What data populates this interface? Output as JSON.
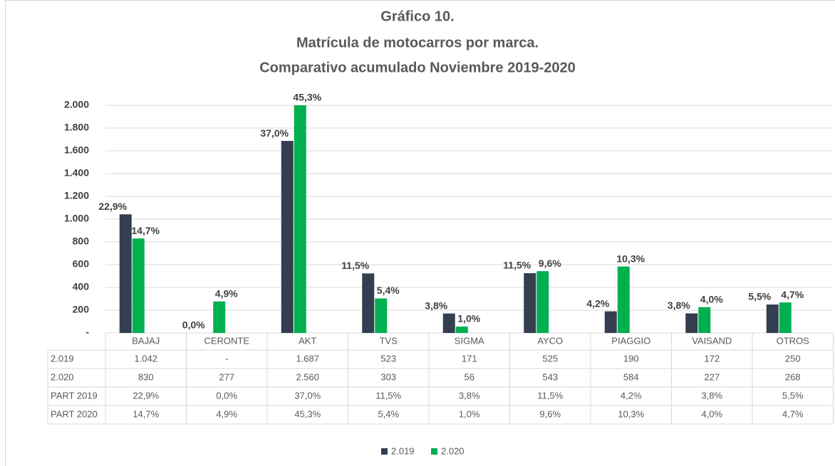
{
  "chart_data": {
    "type": "bar",
    "title": [
      "Gráfico 10.",
      "Matrícula de motocarros por marca.",
      "Comparativo acumulado Noviembre 2019-2020"
    ],
    "categories": [
      "BAJAJ",
      "CERONTE",
      "AKT",
      "TVS",
      "SIGMA",
      "AYCO",
      "PIAGGIO",
      "VAISAND",
      "OTROS"
    ],
    "series": [
      {
        "name": "2.019",
        "color": "#333f50",
        "values": [
          1042,
          0,
          1687,
          523,
          171,
          525,
          190,
          172,
          250
        ],
        "value_labels": [
          "1.042",
          "-",
          "1.687",
          "523",
          "171",
          "525",
          "190",
          "172",
          "250"
        ]
      },
      {
        "name": "2.020",
        "color": "#00b050",
        "values": [
          830,
          277,
          2560,
          303,
          56,
          543,
          584,
          227,
          268
        ],
        "value_labels": [
          "830",
          "277",
          "2.560",
          "303",
          "56",
          "543",
          "584",
          "227",
          "268"
        ]
      }
    ],
    "part_series": [
      {
        "name": "PART 2019",
        "values": [
          22.9,
          0,
          37.0,
          11.5,
          3.8,
          11.5,
          4.2,
          3.8,
          5.5
        ],
        "value_labels": [
          "22,9%",
          "0,0%",
          "37,0%",
          "11,5%",
          "3,8%",
          "11,5%",
          "4,2%",
          "3,8%",
          "5,5%"
        ]
      },
      {
        "name": "PART 2020",
        "values": [
          14.7,
          4.9,
          45.3,
          5.4,
          1.0,
          9.6,
          10.3,
          4.0,
          4.7
        ],
        "value_labels": [
          "14,7%",
          "4,9%",
          "45,3%",
          "5,4%",
          "1,0%",
          "9,6%",
          "10,3%",
          "4,0%",
          "4,7%"
        ]
      }
    ],
    "ylim": [
      0,
      2000
    ],
    "yticks": [
      {
        "value": 0,
        "label": "-"
      },
      200,
      400,
      600,
      800,
      {
        "value": 1000,
        "label": "1.000"
      },
      {
        "value": 1200,
        "label": "1.200"
      },
      {
        "value": 1400,
        "label": "1.400"
      },
      {
        "value": 1600,
        "label": "1.600"
      },
      {
        "value": 1800,
        "label": "1.800"
      },
      {
        "value": 2000,
        "label": "2.000"
      }
    ],
    "grid": true,
    "legend": "bottom"
  }
}
